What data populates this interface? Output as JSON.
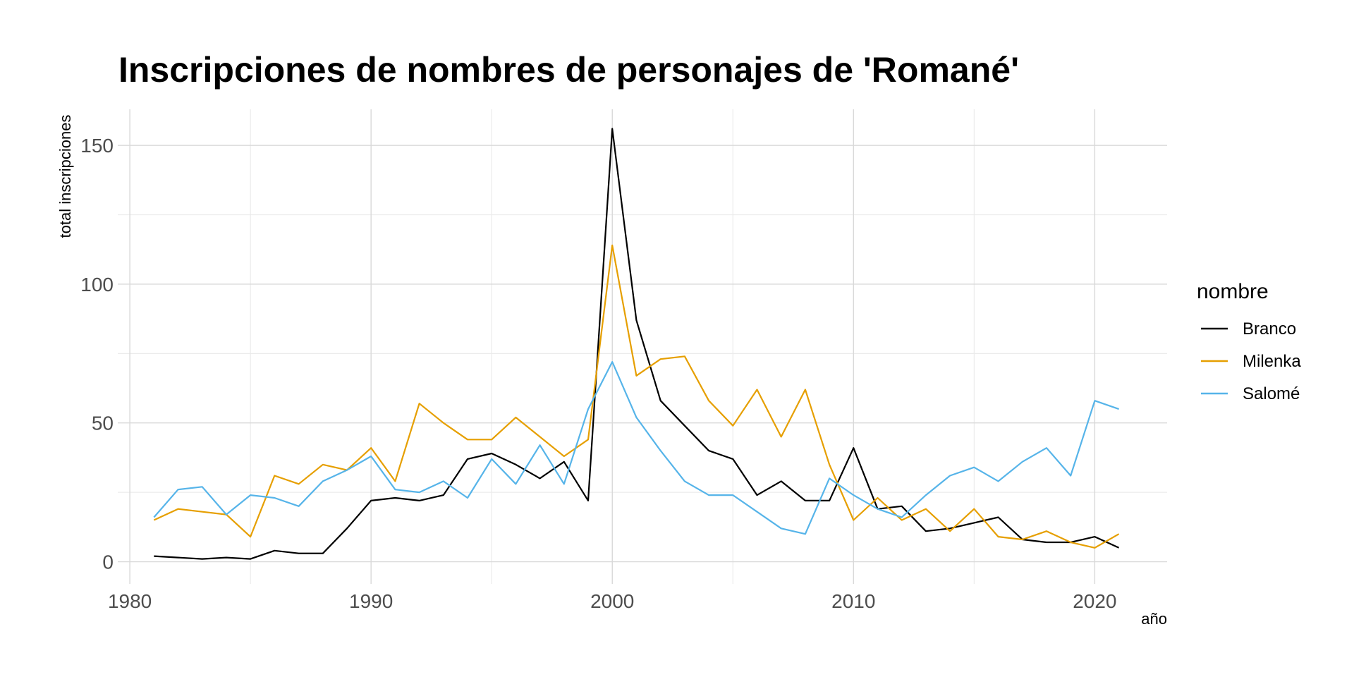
{
  "chart_data": {
    "type": "line",
    "title": "Inscripciones de nombres de personajes de 'Romané'",
    "xlabel": "año",
    "ylabel": "total inscripciones",
    "xlim": [
      1979.5,
      2023
    ],
    "ylim": [
      -8,
      163
    ],
    "x_ticks": [
      1980,
      1990,
      2000,
      2010,
      2020
    ],
    "x_minor_ticks": [
      1985,
      1995,
      2005,
      2015
    ],
    "y_ticks": [
      0,
      50,
      100,
      150
    ],
    "y_minor_ticks": [
      25,
      75,
      125
    ],
    "grid": true,
    "legend": {
      "title": "nombre",
      "position": "right"
    },
    "x": [
      1981,
      1982,
      1983,
      1984,
      1985,
      1986,
      1987,
      1988,
      1989,
      1990,
      1991,
      1992,
      1993,
      1994,
      1995,
      1996,
      1997,
      1998,
      1999,
      2000,
      2001,
      2002,
      2003,
      2004,
      2005,
      2006,
      2007,
      2008,
      2009,
      2010,
      2011,
      2012,
      2013,
      2014,
      2015,
      2016,
      2017,
      2018,
      2019,
      2020,
      2021
    ],
    "series": [
      {
        "name": "Branco",
        "color": "#000000",
        "values": [
          2,
          1.5,
          1,
          1.5,
          1,
          4,
          3,
          3,
          12,
          22,
          23,
          22,
          24,
          37,
          39,
          35,
          30,
          36,
          22,
          156,
          87,
          58,
          49,
          40,
          37,
          24,
          29,
          22,
          22,
          41,
          19,
          20,
          11,
          12,
          14,
          16,
          8,
          7,
          7,
          9,
          5
        ]
      },
      {
        "name": "Milenka",
        "color": "#E69F00",
        "values": [
          15,
          19,
          18,
          17,
          9,
          31,
          28,
          35,
          33,
          41,
          29,
          57,
          50,
          44,
          44,
          52,
          45,
          38,
          44,
          114,
          67,
          73,
          74,
          58,
          49,
          62,
          45,
          62,
          35,
          15,
          23,
          15,
          19,
          11,
          19,
          9,
          8,
          11,
          7,
          5,
          10
        ]
      },
      {
        "name": "Salomé",
        "color": "#56B4E9",
        "values": [
          16,
          26,
          27,
          17,
          24,
          23,
          20,
          29,
          33,
          38,
          26,
          25,
          29,
          23,
          37,
          28,
          42,
          28,
          55,
          72,
          52,
          40,
          29,
          24,
          24,
          18,
          12,
          10,
          30,
          24,
          19,
          16,
          24,
          31,
          34,
          29,
          36,
          41,
          31,
          58,
          55
        ]
      }
    ]
  }
}
